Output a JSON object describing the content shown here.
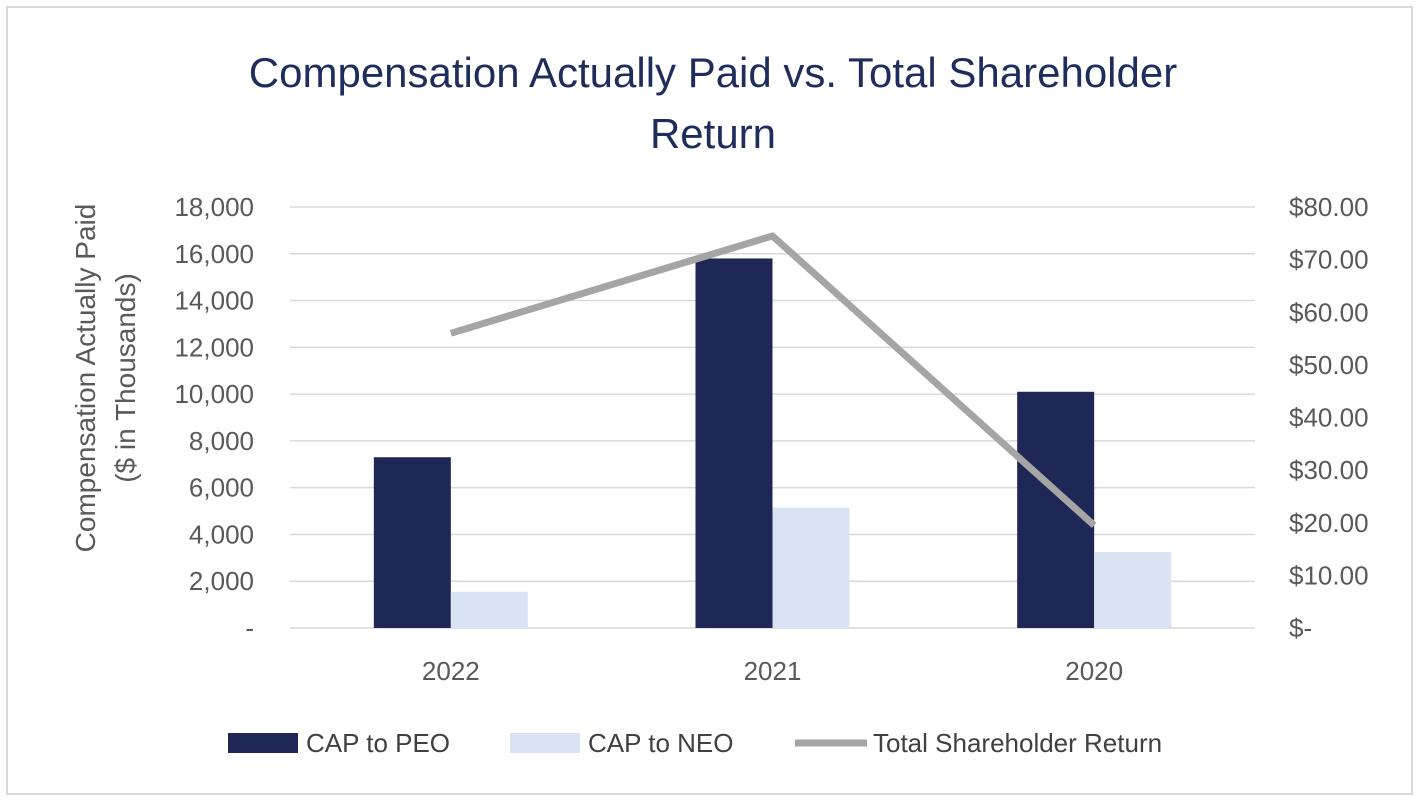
{
  "chart_data": {
    "type": "bar",
    "title_line1": "Compensation Actually Paid vs. Total Shareholder",
    "title_line2": "Return",
    "ylabel_line1": "Compensation Actually Paid",
    "ylabel_line2": "($ in Thousands)",
    "categories": [
      "2022",
      "2021",
      "2020"
    ],
    "ylim": [
      0,
      18000
    ],
    "y2lim": [
      0,
      80
    ],
    "y_ticks": [
      "-",
      "2,000",
      "4,000",
      "6,000",
      "8,000",
      "10,000",
      "12,000",
      "14,000",
      "16,000",
      "18,000"
    ],
    "y2_ticks": [
      "$-",
      "$10.00",
      "$20.00",
      "$30.00",
      "$40.00",
      "$50.00",
      "$60.00",
      "$70.00",
      "$80.00"
    ],
    "series": [
      {
        "name": "CAP to PEO",
        "type": "bar",
        "axis": "left",
        "color": "#1f2757",
        "values": [
          7300,
          15800,
          10100
        ]
      },
      {
        "name": "CAP to NEO",
        "type": "bar",
        "axis": "left",
        "color": "#dae3f3",
        "values": [
          1550,
          5150,
          3250
        ]
      },
      {
        "name": "Total Shareholder Return",
        "type": "line",
        "axis": "right",
        "color": "#a5a5a5",
        "values": [
          56.0,
          74.5,
          19.5
        ]
      }
    ],
    "legend_position": "bottom",
    "grid": true
  }
}
